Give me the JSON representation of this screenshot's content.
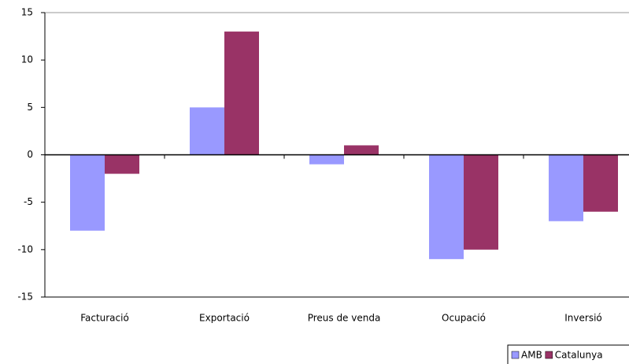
{
  "chart_data": {
    "type": "bar",
    "categories": [
      "Facturació",
      "Exportació",
      "Preus de venda",
      "Ocupació",
      "Inversió"
    ],
    "series": [
      {
        "name": "AMB",
        "color": "#9999ff",
        "values": [
          -8,
          5,
          -1,
          -11,
          -7
        ]
      },
      {
        "name": "Catalunya",
        "color": "#993366",
        "values": [
          -2,
          13,
          1,
          -10,
          -6
        ]
      }
    ],
    "ylim": [
      -15,
      15
    ],
    "yticks": [
      -15,
      -10,
      -5,
      0,
      5,
      10,
      15
    ],
    "grid": false,
    "legend": "bottom-right"
  }
}
